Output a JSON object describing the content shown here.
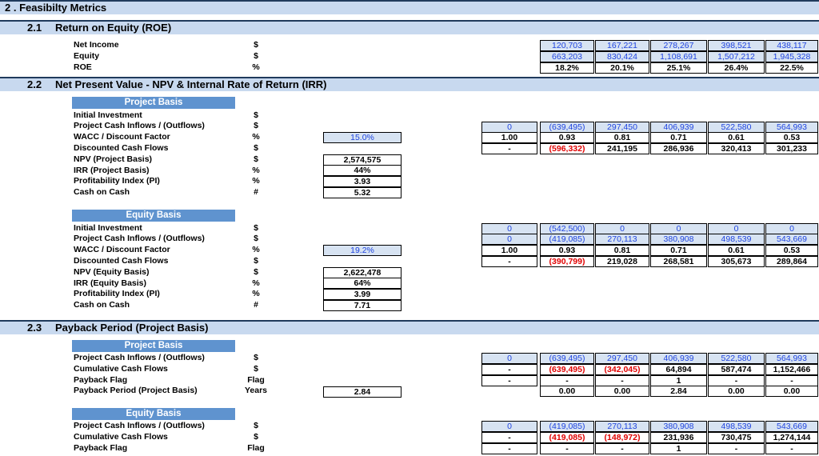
{
  "title": "2 . Feasibilty Metrics",
  "roe": {
    "num": "2.1",
    "title": "Return on Equity (ROE)",
    "rows": [
      {
        "label": "Net Income",
        "unit": "$",
        "values": [
          "120,703",
          "167,221",
          "278,267",
          "398,521",
          "438,117"
        ],
        "style": "in"
      },
      {
        "label": "Equity",
        "unit": "$",
        "values": [
          "663,203",
          "830,424",
          "1,108,691",
          "1,507,212",
          "1,945,328"
        ],
        "style": "in"
      },
      {
        "label": "ROE",
        "unit": "%",
        "values": [
          "18.2%",
          "20.1%",
          "25.1%",
          "26.4%",
          "22.5%"
        ],
        "style": "calc"
      }
    ]
  },
  "npv": {
    "num": "2.2",
    "title": "Net Present Value - NPV & Internal Rate of Return (IRR)",
    "project": {
      "heading": "Project Basis",
      "labels": [
        {
          "label": "Initial Investment",
          "unit": "$"
        },
        {
          "label": "Project Cash Inflows / (Outflows)",
          "unit": "$"
        },
        {
          "label": "WACC / Discount Factor",
          "unit": "%"
        },
        {
          "label": "Discounted Cash Flows",
          "unit": "$"
        },
        {
          "label": "NPV (Project Basis)",
          "unit": "$"
        },
        {
          "label": "IRR (Project Basis)",
          "unit": "%"
        },
        {
          "label": "Profitability Index (PI)",
          "unit": "%"
        },
        {
          "label": "Cash on Cash",
          "unit": "#"
        }
      ],
      "wacc": "15.0%",
      "results": [
        "2,574,575",
        "44%",
        "3.93",
        "5.32"
      ],
      "grid": [
        {
          "c0": "0",
          "vals": [
            "(639,495)",
            "297,450",
            "406,939",
            "522,580",
            "564,993"
          ],
          "style": "in"
        },
        {
          "c0": "1.00",
          "vals": [
            "0.93",
            "0.81",
            "0.71",
            "0.61",
            "0.53"
          ],
          "style": "calc"
        },
        {
          "c0": "-",
          "vals": [
            "(596,332)",
            "241,195",
            "286,936",
            "320,413",
            "301,233"
          ],
          "style": "calc"
        }
      ]
    },
    "equity": {
      "heading": "Equity Basis",
      "labels": [
        {
          "label": "Initial Investment",
          "unit": "$"
        },
        {
          "label": "Project Cash Inflows / (Outflows)",
          "unit": "$"
        },
        {
          "label": "WACC / Discount Factor",
          "unit": "%"
        },
        {
          "label": "Discounted Cash Flows",
          "unit": "$"
        },
        {
          "label": "NPV (Equity Basis)",
          "unit": "$"
        },
        {
          "label": "IRR (Equity Basis)",
          "unit": "%"
        },
        {
          "label": "Profitability Index (PI)",
          "unit": "%"
        },
        {
          "label": "Cash on Cash",
          "unit": "#"
        }
      ],
      "wacc": "19.2%",
      "results": [
        "2,622,478",
        "64%",
        "3.99",
        "7.71"
      ],
      "grid": [
        {
          "c0": "0",
          "vals": [
            "(542,500)",
            "0",
            "0",
            "0",
            "0"
          ],
          "style": "in"
        },
        {
          "c0": "0",
          "vals": [
            "(419,085)",
            "270,113",
            "380,908",
            "498,539",
            "543,669"
          ],
          "style": "in"
        },
        {
          "c0": "1.00",
          "vals": [
            "0.93",
            "0.81",
            "0.71",
            "0.61",
            "0.53"
          ],
          "style": "calc"
        },
        {
          "c0": "-",
          "vals": [
            "(390,799)",
            "219,028",
            "268,581",
            "305,673",
            "289,864"
          ],
          "style": "calc"
        }
      ]
    }
  },
  "payback": {
    "num": "2.3",
    "title": "Payback Period (Project Basis)",
    "project": {
      "heading": "Project Basis",
      "labels": [
        {
          "label": "Project Cash Inflows / (Outflows)",
          "unit": "$"
        },
        {
          "label": "Cumulative Cash Flows",
          "unit": "$"
        },
        {
          "label": "Payback Flag",
          "unit": "Flag"
        },
        {
          "label": "Payback Period (Project Basis)",
          "unit": "Years"
        }
      ],
      "result": "2.84",
      "grid": [
        {
          "c0": "0",
          "vals": [
            "(639,495)",
            "297,450",
            "406,939",
            "522,580",
            "564,993"
          ],
          "style": "in"
        },
        {
          "c0": "-",
          "vals": [
            "(639,495)",
            "(342,045)",
            "64,894",
            "587,474",
            "1,152,466"
          ],
          "style": "calc"
        },
        {
          "c0": "-",
          "vals": [
            "-",
            "-",
            "1",
            "-",
            "-"
          ],
          "style": "calc"
        },
        {
          "c0": "",
          "vals": [
            "0.00",
            "0.00",
            "2.84",
            "0.00",
            "0.00"
          ],
          "style": "calc"
        }
      ]
    },
    "equity": {
      "heading": "Equity Basis",
      "labels": [
        {
          "label": "Project Cash Inflows / (Outflows)",
          "unit": "$"
        },
        {
          "label": "Cumulative Cash Flows",
          "unit": "$"
        },
        {
          "label": "Payback Flag",
          "unit": "Flag"
        }
      ],
      "grid": [
        {
          "c0": "0",
          "vals": [
            "(419,085)",
            "270,113",
            "380,908",
            "498,539",
            "543,669"
          ],
          "style": "in"
        },
        {
          "c0": "-",
          "vals": [
            "(419,085)",
            "(148,972)",
            "231,936",
            "730,475",
            "1,274,144"
          ],
          "style": "calc"
        },
        {
          "c0": "-",
          "vals": [
            "-",
            "-",
            "1",
            "-",
            "-"
          ],
          "style": "calc"
        }
      ]
    }
  },
  "colors": {
    "section_bar": "#c8d9ef",
    "basis_header": "#5f93cf",
    "input_fill": "#d7e3f2",
    "input_text": "#1f44e0",
    "negative": "#e00000"
  }
}
